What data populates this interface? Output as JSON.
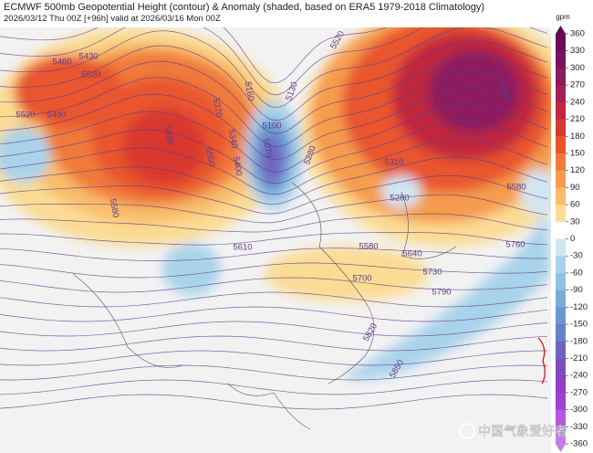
{
  "header": {
    "title": "ECMWF 500mb Geopotential Height (contour) & Anomaly (shaded, based on ERA5 1979-2018 Climatology)",
    "subtitle": "2026/03/12 Thu 00Z [+96h] valid at 2026/03/16 Mon 00Z"
  },
  "colorbar": {
    "unit": "gpm",
    "ticks": [
      360,
      330,
      300,
      270,
      240,
      210,
      180,
      150,
      120,
      90,
      60,
      30,
      0,
      -30,
      -60,
      -90,
      -120,
      -150,
      -180,
      -210,
      -240,
      -270,
      -300,
      -330,
      -360
    ]
  },
  "contour_labels": [
    "5460",
    "5430",
    "5520",
    "5490",
    "5520",
    "5430",
    "5550",
    "5370",
    "5340",
    "5400",
    "5160",
    "5130",
    "5100",
    "5070",
    "5280",
    "5310",
    "5280",
    "5580",
    "5610",
    "5580",
    "5640",
    "5700",
    "5730",
    "5790",
    "5760",
    "5820",
    "5850",
    "5520",
    "5490",
    "5580"
  ],
  "watermark": "中国气象爱好者"
}
